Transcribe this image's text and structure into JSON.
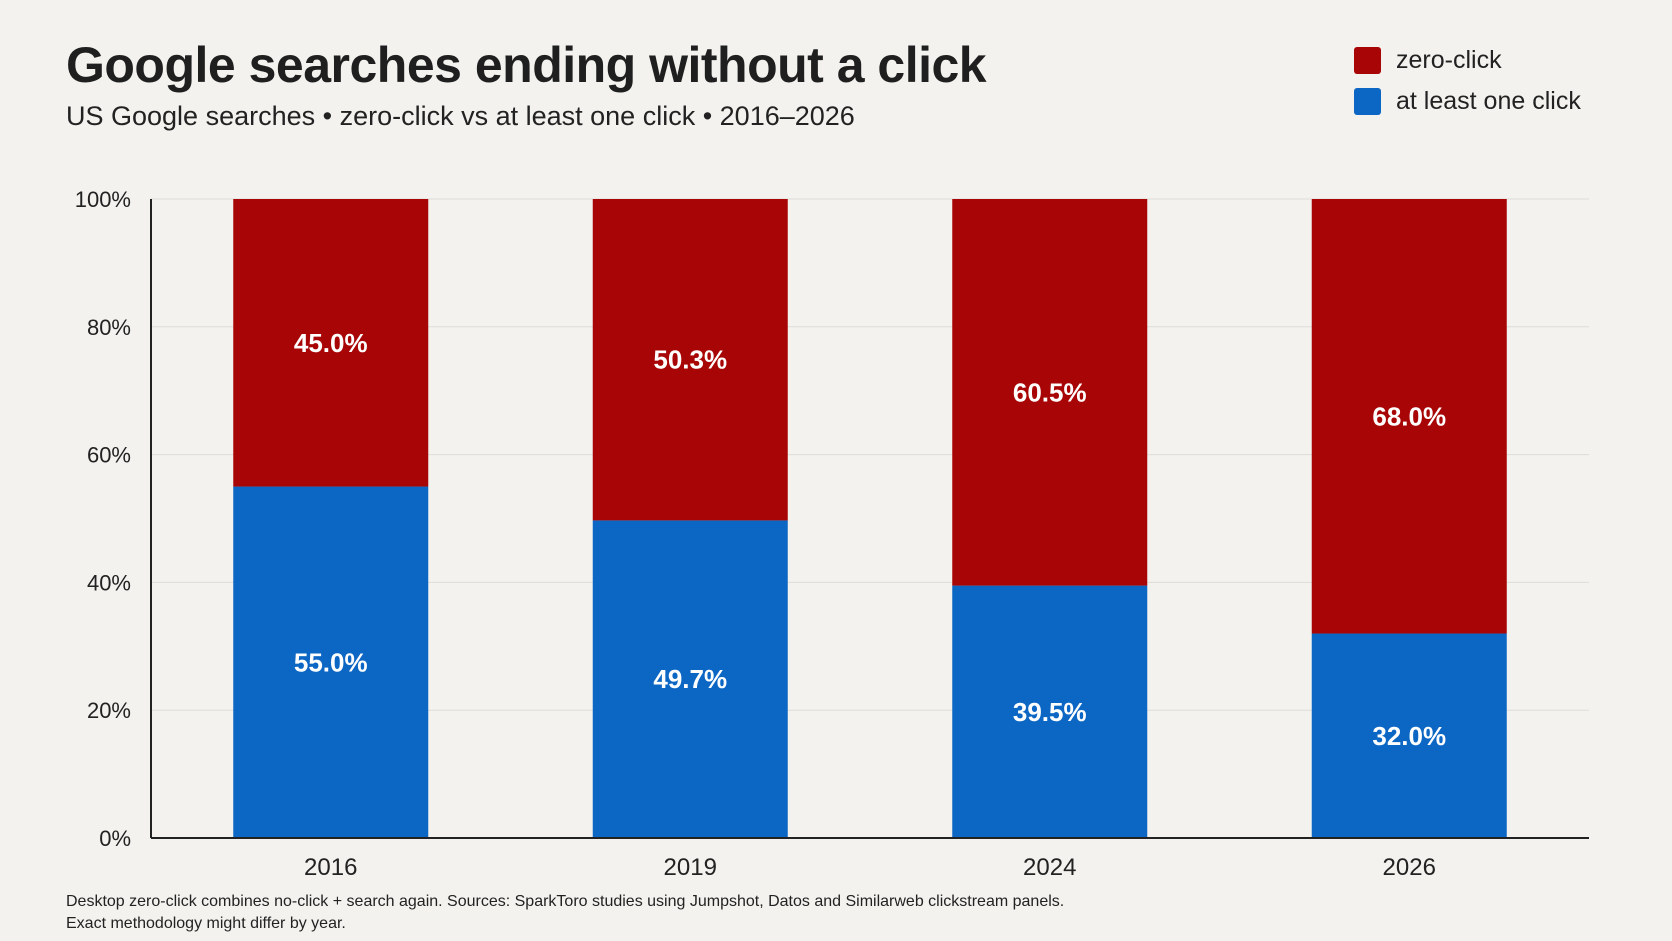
{
  "title": "Google searches ending without a click",
  "subtitle": "US Google searches • zero-click vs at least one click • 2016–2026",
  "legend": [
    {
      "label": "zero-click",
      "color": "#a80606"
    },
    {
      "label": "at least one click",
      "color": "#0c66c4"
    }
  ],
  "footnote": {
    "line1": "Desktop zero-click combines no-click + search again. Sources: SparkToro studies using Jumpshot, Datos and Similarweb clickstream panels.",
    "line2": "Exact methodology might differ by year."
  },
  "chart_data": {
    "type": "bar",
    "stacked": true,
    "categories": [
      "2016",
      "2019",
      "2024",
      "2026"
    ],
    "series": [
      {
        "name": "at least one click",
        "color": "#0c66c4",
        "values": [
          55.0,
          49.7,
          39.5,
          32.0
        ],
        "labels": [
          "55.0%",
          "49.7%",
          "39.5%",
          "32.0%"
        ]
      },
      {
        "name": "zero-click",
        "color": "#a80606",
        "values": [
          45.0,
          50.3,
          60.5,
          68.0
        ],
        "labels": [
          "45.0%",
          "50.3%",
          "60.5%",
          "68.0%"
        ]
      }
    ],
    "ylim": [
      0,
      100
    ],
    "yticks": [
      {
        "value": 0,
        "label": "0%"
      },
      {
        "value": 20,
        "label": "20%"
      },
      {
        "value": 40,
        "label": "40%"
      },
      {
        "value": 60,
        "label": "60%"
      },
      {
        "value": 80,
        "label": "80%"
      },
      {
        "value": 100,
        "label": "100%"
      }
    ],
    "grid": true,
    "legend_position": "top-right"
  }
}
